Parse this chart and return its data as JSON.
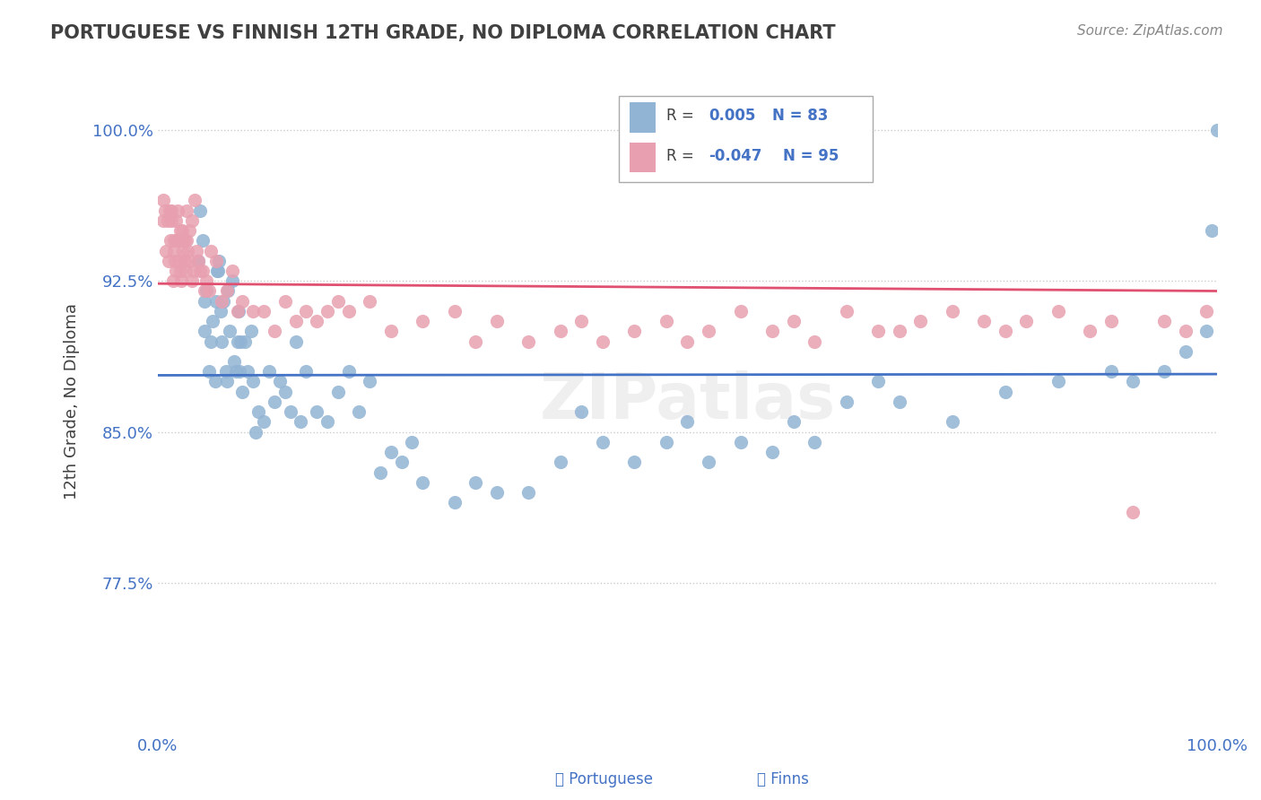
{
  "title": "PORTUGUESE VS FINNISH 12TH GRADE, NO DIPLOMA CORRELATION CHART",
  "source_text": "Source: ZipAtlas.com",
  "xlabel": "",
  "ylabel": "12th Grade, No Diploma",
  "xlim": [
    0.0,
    1.0
  ],
  "ylim": [
    0.7,
    1.03
  ],
  "yticks": [
    0.775,
    0.85,
    0.925,
    1.0
  ],
  "ytick_labels": [
    "77.5%",
    "85.0%",
    "92.5%",
    "100.0%"
  ],
  "xticks": [
    0.0,
    1.0
  ],
  "xtick_labels": [
    "0.0%",
    "100.0%"
  ],
  "portuguese_R": 0.005,
  "portuguese_N": 83,
  "finns_R": -0.047,
  "finns_N": 95,
  "portuguese_color": "#92b4d4",
  "finns_color": "#e8a0b0",
  "trend_portuguese_color": "#4472c4",
  "trend_finns_color": "#e05070",
  "legend_portuguese_label": "Portuguese",
  "legend_finns_label": "Finns",
  "right_label_color": "#4472c4",
  "title_color": "#404040",
  "watermark_text": "ZIPatlas",
  "background_color": "#ffffff",
  "grid_color": "#cccccc",
  "portuguese_x": [
    0.038,
    0.04,
    0.042,
    0.044,
    0.044,
    0.046,
    0.048,
    0.05,
    0.052,
    0.054,
    0.055,
    0.056,
    0.057,
    0.058,
    0.059,
    0.06,
    0.062,
    0.064,
    0.065,
    0.066,
    0.068,
    0.07,
    0.072,
    0.074,
    0.075,
    0.076,
    0.077,
    0.078,
    0.08,
    0.082,
    0.085,
    0.088,
    0.09,
    0.092,
    0.095,
    0.1,
    0.105,
    0.11,
    0.115,
    0.12,
    0.125,
    0.13,
    0.135,
    0.14,
    0.15,
    0.16,
    0.17,
    0.18,
    0.19,
    0.2,
    0.21,
    0.22,
    0.23,
    0.24,
    0.25,
    0.28,
    0.3,
    0.32,
    0.35,
    0.38,
    0.4,
    0.42,
    0.45,
    0.48,
    0.5,
    0.52,
    0.55,
    0.58,
    0.6,
    0.62,
    0.65,
    0.68,
    0.7,
    0.75,
    0.8,
    0.85,
    0.9,
    0.92,
    0.95,
    0.97,
    0.99,
    0.995,
    1.0
  ],
  "portuguese_y": [
    0.935,
    0.96,
    0.945,
    0.915,
    0.9,
    0.92,
    0.88,
    0.895,
    0.905,
    0.875,
    0.915,
    0.93,
    0.93,
    0.935,
    0.91,
    0.895,
    0.915,
    0.88,
    0.875,
    0.92,
    0.9,
    0.925,
    0.885,
    0.88,
    0.895,
    0.91,
    0.88,
    0.895,
    0.87,
    0.895,
    0.88,
    0.9,
    0.875,
    0.85,
    0.86,
    0.855,
    0.88,
    0.865,
    0.875,
    0.87,
    0.86,
    0.895,
    0.855,
    0.88,
    0.86,
    0.855,
    0.87,
    0.88,
    0.86,
    0.875,
    0.83,
    0.84,
    0.835,
    0.845,
    0.825,
    0.815,
    0.825,
    0.82,
    0.82,
    0.835,
    0.86,
    0.845,
    0.835,
    0.845,
    0.855,
    0.835,
    0.845,
    0.84,
    0.855,
    0.845,
    0.865,
    0.875,
    0.865,
    0.855,
    0.87,
    0.875,
    0.88,
    0.875,
    0.88,
    0.89,
    0.9,
    0.95,
    1.0
  ],
  "finns_x": [
    0.005,
    0.008,
    0.01,
    0.012,
    0.013,
    0.014,
    0.015,
    0.016,
    0.017,
    0.018,
    0.019,
    0.02,
    0.021,
    0.022,
    0.023,
    0.024,
    0.025,
    0.026,
    0.027,
    0.028,
    0.03,
    0.032,
    0.034,
    0.036,
    0.038,
    0.04,
    0.042,
    0.044,
    0.046,
    0.048,
    0.05,
    0.055,
    0.06,
    0.065,
    0.07,
    0.075,
    0.08,
    0.09,
    0.1,
    0.11,
    0.12,
    0.13,
    0.14,
    0.15,
    0.16,
    0.17,
    0.18,
    0.2,
    0.22,
    0.25,
    0.28,
    0.3,
    0.32,
    0.35,
    0.38,
    0.4,
    0.42,
    0.45,
    0.48,
    0.5,
    0.52,
    0.55,
    0.58,
    0.6,
    0.62,
    0.65,
    0.68,
    0.7,
    0.72,
    0.75,
    0.78,
    0.8,
    0.82,
    0.85,
    0.88,
    0.9,
    0.92,
    0.95,
    0.97,
    0.99,
    0.005,
    0.007,
    0.009,
    0.011,
    0.013,
    0.015,
    0.017,
    0.019,
    0.021,
    0.023,
    0.025,
    0.027,
    0.03,
    0.032,
    0.035
  ],
  "finns_y": [
    0.955,
    0.94,
    0.935,
    0.945,
    0.96,
    0.925,
    0.94,
    0.935,
    0.93,
    0.945,
    0.945,
    0.935,
    0.93,
    0.925,
    0.95,
    0.94,
    0.935,
    0.93,
    0.945,
    0.94,
    0.935,
    0.925,
    0.93,
    0.94,
    0.935,
    0.93,
    0.93,
    0.92,
    0.925,
    0.92,
    0.94,
    0.935,
    0.915,
    0.92,
    0.93,
    0.91,
    0.915,
    0.91,
    0.91,
    0.9,
    0.915,
    0.905,
    0.91,
    0.905,
    0.91,
    0.915,
    0.91,
    0.915,
    0.9,
    0.905,
    0.91,
    0.895,
    0.905,
    0.895,
    0.9,
    0.905,
    0.895,
    0.9,
    0.905,
    0.895,
    0.9,
    0.91,
    0.9,
    0.905,
    0.895,
    0.91,
    0.9,
    0.9,
    0.905,
    0.91,
    0.905,
    0.9,
    0.905,
    0.91,
    0.9,
    0.905,
    0.81,
    0.905,
    0.9,
    0.91,
    0.965,
    0.96,
    0.955,
    0.96,
    0.955,
    0.945,
    0.955,
    0.96,
    0.95,
    0.945,
    0.945,
    0.96,
    0.95,
    0.955,
    0.965
  ]
}
